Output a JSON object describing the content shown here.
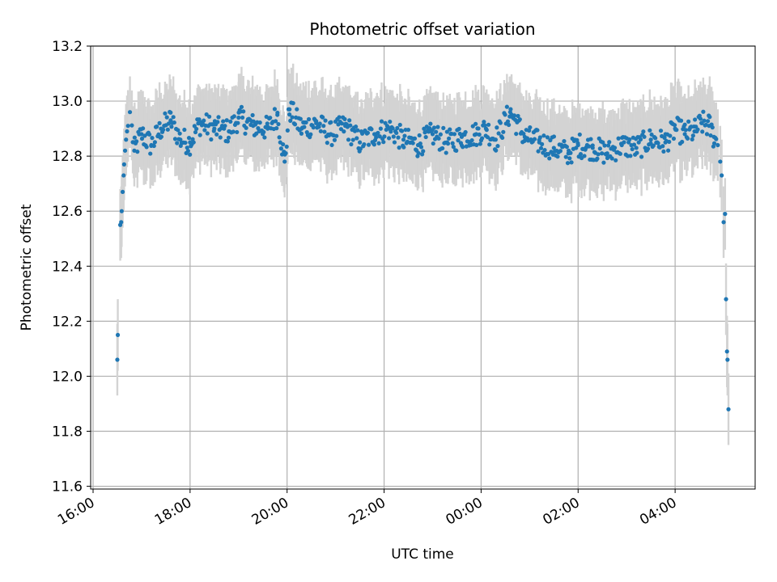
{
  "chart_data": {
    "type": "scatter",
    "title": "Photometric offset variation",
    "xlabel": "UTC time",
    "ylabel": "Photometric offset",
    "xlim_hours": [
      15.95,
      29.65
    ],
    "ylim": [
      11.59,
      13.2
    ],
    "grid": true,
    "x_tick_hours": [
      16,
      18,
      20,
      22,
      24,
      26,
      28
    ],
    "x_tick_labels": [
      "16:00",
      "18:00",
      "20:00",
      "22:00",
      "00:00",
      "02:00",
      "04:00"
    ],
    "y_ticks": [
      11.6,
      11.8,
      12.0,
      12.2,
      12.4,
      12.6,
      12.8,
      13.0,
      13.2
    ],
    "y_tick_labels": [
      "11.6",
      "11.8",
      "12.0",
      "12.2",
      "12.4",
      "12.6",
      "12.8",
      "13.0",
      "13.2"
    ],
    "colors": {
      "point": "#1f77b4",
      "errorbar": "#d3d3d3",
      "grid": "#b0b0b0",
      "axes": "#000000"
    },
    "series": [
      {
        "name": "offset",
        "error": 0.13,
        "points": [
          [
            16.5,
            12.06
          ],
          [
            16.51,
            12.15
          ],
          [
            16.56,
            12.55
          ],
          [
            16.58,
            12.56
          ],
          [
            16.59,
            12.6
          ],
          [
            16.61,
            12.67
          ],
          [
            16.63,
            12.73
          ],
          [
            16.64,
            12.77
          ],
          [
            16.66,
            12.82
          ],
          [
            16.68,
            12.86
          ],
          [
            16.7,
            12.89
          ],
          [
            16.72,
            12.91
          ],
          [
            16.76,
            12.96
          ],
          [
            16.85,
            12.82
          ],
          [
            17.0,
            12.88
          ],
          [
            17.2,
            12.84
          ],
          [
            17.4,
            12.9
          ],
          [
            17.6,
            12.93
          ],
          [
            17.8,
            12.86
          ],
          [
            18.0,
            12.85
          ],
          [
            18.2,
            12.92
          ],
          [
            18.5,
            12.9
          ],
          [
            18.8,
            12.89
          ],
          [
            19.0,
            12.94
          ],
          [
            19.3,
            12.91
          ],
          [
            19.6,
            12.9
          ],
          [
            19.8,
            12.95
          ],
          [
            19.95,
            12.78
          ],
          [
            20.05,
            12.97
          ],
          [
            20.3,
            12.9
          ],
          [
            20.6,
            12.92
          ],
          [
            20.9,
            12.88
          ],
          [
            21.2,
            12.91
          ],
          [
            21.5,
            12.85
          ],
          [
            21.8,
            12.88
          ],
          [
            22.1,
            12.9
          ],
          [
            22.4,
            12.86
          ],
          [
            22.7,
            12.84
          ],
          [
            23.0,
            12.88
          ],
          [
            23.3,
            12.85
          ],
          [
            23.6,
            12.87
          ],
          [
            23.9,
            12.88
          ],
          [
            24.1,
            12.9
          ],
          [
            24.3,
            12.86
          ],
          [
            24.6,
            12.96
          ],
          [
            24.9,
            12.87
          ],
          [
            25.2,
            12.85
          ],
          [
            25.5,
            12.83
          ],
          [
            25.8,
            12.81
          ],
          [
            26.0,
            12.84
          ],
          [
            26.3,
            12.83
          ],
          [
            26.6,
            12.81
          ],
          [
            26.9,
            12.84
          ],
          [
            27.2,
            12.83
          ],
          [
            27.5,
            12.86
          ],
          [
            27.8,
            12.85
          ],
          [
            28.0,
            12.9
          ],
          [
            28.2,
            12.88
          ],
          [
            28.4,
            12.89
          ],
          [
            28.55,
            12.92
          ],
          [
            28.7,
            12.91
          ],
          [
            28.8,
            12.87
          ],
          [
            28.88,
            12.84
          ],
          [
            28.93,
            12.78
          ],
          [
            28.96,
            12.73
          ],
          [
            29.0,
            12.56
          ],
          [
            29.03,
            12.59
          ],
          [
            29.05,
            12.28
          ],
          [
            29.07,
            12.09
          ],
          [
            29.08,
            12.06
          ],
          [
            29.1,
            11.88
          ]
        ]
      }
    ]
  }
}
